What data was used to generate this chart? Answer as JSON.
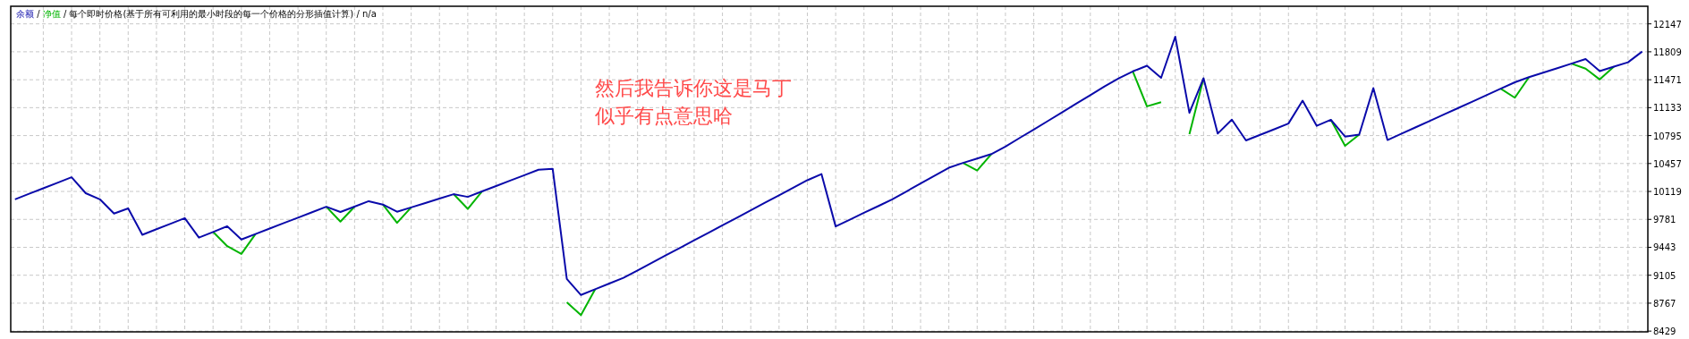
{
  "chart_data": {
    "type": "line",
    "title": "余额 / 净值 / 每个即时价格(基于所有可利用的最小时段的每一个价格的分形插值计算) / n/a",
    "annotations": [
      "然后我告诉你这是马丁",
      "似乎有点意思哈"
    ],
    "grid": true,
    "tick_labels": "y",
    "categories": [
      null,
      null,
      null,
      null,
      null,
      null,
      null,
      null,
      null,
      null,
      null,
      null,
      null,
      null,
      null,
      null,
      null,
      null,
      null,
      null,
      null,
      null,
      null,
      null,
      null,
      null,
      null,
      null,
      null,
      null,
      null,
      null,
      null,
      null,
      null,
      null,
      null,
      null,
      null,
      null,
      null,
      null,
      null,
      null,
      null,
      null,
      null,
      null,
      null,
      null,
      null,
      null,
      null,
      null,
      null,
      null,
      null,
      null,
      null,
      null,
      null,
      null,
      null,
      null,
      null,
      null,
      null,
      null,
      null,
      null,
      null,
      null,
      null,
      null,
      null,
      null,
      null,
      null,
      null,
      null,
      null,
      null,
      null,
      null,
      null,
      null,
      null,
      null,
      null,
      null,
      null,
      null,
      null,
      null,
      null,
      null,
      null,
      null,
      null,
      null,
      null,
      null,
      null,
      null,
      null,
      null,
      null,
      null,
      null,
      null,
      null,
      null,
      null,
      null,
      null,
      null
    ],
    "ylim": [
      8420,
      12360
    ],
    "yticks": [
      8429,
      8767,
      9105,
      9443,
      9781,
      10119,
      10457,
      10795,
      11133,
      11471,
      11809,
      12147
    ],
    "series": [
      {
        "color": "#00b400",
        "values": [
          null,
          null,
          null,
          null,
          null,
          null,
          null,
          null,
          null,
          null,
          null,
          null,
          null,
          null,
          9629,
          9457,
          9363,
          9604,
          null,
          null,
          null,
          null,
          9934,
          9754,
          9935,
          null,
          9960,
          9739,
          9926,
          null,
          null,
          10086,
          9908,
          10119,
          null,
          null,
          null,
          null,
          null,
          8778,
          8622,
          8935,
          null,
          null,
          null,
          null,
          null,
          null,
          null,
          null,
          null,
          null,
          null,
          null,
          null,
          null,
          null,
          null,
          null,
          null,
          null,
          null,
          null,
          null,
          null,
          null,
          null,
          10464,
          10373,
          10571,
          null,
          null,
          null,
          null,
          null,
          null,
          null,
          null,
          null,
          11572,
          11149,
          11200,
          null,
          10813,
          11489,
          null,
          null,
          null,
          null,
          null,
          null,
          null,
          null,
          10986,
          10672,
          10806,
          null,
          null,
          null,
          null,
          null,
          null,
          null,
          null,
          null,
          11362,
          11253,
          11502,
          null,
          null,
          11666,
          11605,
          11474,
          11629,
          null,
          null
        ]
      },
      {
        "color": "#0a0aaa",
        "values": [
          10024,
          10091,
          10157,
          10224,
          10291,
          10098,
          10024,
          9852,
          9914,
          9595,
          9662,
          9729,
          9796,
          9560,
          9629,
          9698,
          9538,
          9604,
          9670,
          9736,
          9802,
          9868,
          9934,
          9870,
          9935,
          10001,
          9960,
          9874,
          9926,
          9979,
          10032,
          10086,
          10053,
          10119,
          10184,
          10250,
          10316,
          10382,
          10394,
          9060,
          8866,
          8935,
          9004,
          9073,
          9164,
          9255,
          9346,
          9437,
          9527,
          9618,
          9709,
          9800,
          9891,
          9982,
          10073,
          10164,
          10255,
          10329,
          9696,
          9778,
          9860,
          9941,
          10023,
          10119,
          10215,
          10310,
          10406,
          10464,
          10517,
          10571,
          10662,
          10766,
          10868,
          10972,
          11076,
          11181,
          11285,
          11390,
          11487,
          11572,
          11640,
          11494,
          11992,
          11070,
          11489,
          10819,
          10988,
          10736,
          10804,
          10872,
          10941,
          11218,
          10913,
          10986,
          10783,
          10806,
          11369,
          10741,
          10818,
          10896,
          10974,
          11051,
          11129,
          11206,
          11284,
          11362,
          11440,
          11502,
          11557,
          11611,
          11666,
          11721,
          11576,
          11629,
          11682,
          11812
        ]
      }
    ]
  }
}
